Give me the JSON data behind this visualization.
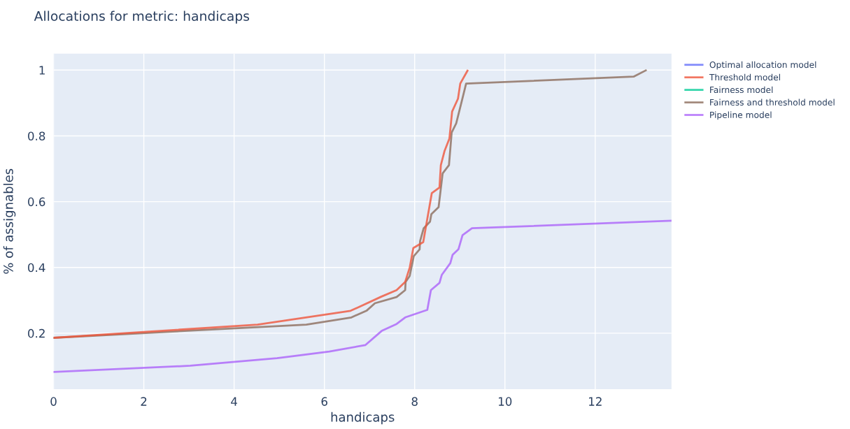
{
  "chart_data": {
    "type": "line",
    "title": "Allocations for metric: handicaps",
    "xlabel": "handicaps",
    "ylabel": "% of assignables",
    "xlim": [
      0,
      13.69
    ],
    "ylim": [
      0.03,
      1.05
    ],
    "xticks": [
      0,
      2,
      4,
      6,
      8,
      10,
      12
    ],
    "yticks": [
      0.2,
      0.4,
      0.6,
      0.8,
      {
        "value": 1,
        "label": "1"
      }
    ],
    "grid": true,
    "legend": "top right",
    "line_style": "solid",
    "marker": "none",
    "series": [
      {
        "name": "Optimal allocation model",
        "color": "#636efa"
      },
      {
        "name": "Threshold model",
        "color": "#ef553b",
        "x": [
          0,
          4.52,
          6.58,
          7.26,
          7.6,
          7.79,
          7.89,
          7.97,
          8.19,
          8.38,
          8.55,
          8.58,
          8.66,
          8.77,
          8.83,
          8.96,
          9.01,
          9.17
        ],
        "values": [
          0.186,
          0.226,
          0.268,
          0.311,
          0.331,
          0.356,
          0.399,
          0.459,
          0.477,
          0.626,
          0.643,
          0.711,
          0.753,
          0.792,
          0.874,
          0.913,
          0.959,
          0.998
        ]
      },
      {
        "name": "Fairness model",
        "color": "#00cc96"
      },
      {
        "name": "Fairness and threshold model",
        "color": "#8c6d5c",
        "x": [
          0,
          5.6,
          6.6,
          6.94,
          7.12,
          7.6,
          7.79,
          7.8,
          7.89,
          7.98,
          8.11,
          8.12,
          8.2,
          8.34,
          8.37,
          8.53,
          8.62,
          8.76,
          8.82,
          8.92,
          9.05,
          9.14,
          12.85,
          13.12
        ],
        "values": [
          0.186,
          0.226,
          0.248,
          0.269,
          0.291,
          0.31,
          0.331,
          0.356,
          0.374,
          0.434,
          0.455,
          0.48,
          0.519,
          0.539,
          0.562,
          0.583,
          0.686,
          0.711,
          0.81,
          0.838,
          0.909,
          0.959,
          0.98,
          0.999
        ]
      },
      {
        "name": "Pipeline model",
        "color": "#ab63fa",
        "x": [
          0,
          3.03,
          4.95,
          6.11,
          6.91,
          7.27,
          7.6,
          7.79,
          8.28,
          8.36,
          8.55,
          8.6,
          8.79,
          8.84,
          8.97,
          9.06,
          9.27,
          13.69
        ],
        "values": [
          0.082,
          0.101,
          0.124,
          0.144,
          0.164,
          0.207,
          0.228,
          0.248,
          0.271,
          0.331,
          0.353,
          0.377,
          0.413,
          0.438,
          0.455,
          0.498,
          0.519,
          0.542
        ]
      }
    ]
  }
}
